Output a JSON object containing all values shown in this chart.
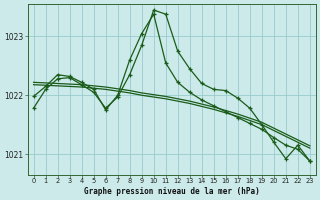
{
  "title": "Graphe pression niveau de la mer (hPa)",
  "background_color": "#cceaea",
  "grid_color": "#99cccc",
  "line_color": "#1a5c1a",
  "xlim": [
    -0.5,
    23.5
  ],
  "ylim": [
    1020.65,
    1023.55
  ],
  "yticks": [
    1021,
    1022,
    1023
  ],
  "xticks": [
    0,
    1,
    2,
    3,
    4,
    5,
    6,
    7,
    8,
    9,
    10,
    11,
    12,
    13,
    14,
    15,
    16,
    17,
    18,
    19,
    20,
    21,
    22,
    23
  ],
  "series1": [
    1021.78,
    1022.1,
    1022.28,
    1022.3,
    1022.18,
    1022.05,
    1021.78,
    1021.97,
    1022.35,
    1022.85,
    1023.45,
    1023.38,
    1022.75,
    1022.45,
    1022.2,
    1022.1,
    1022.08,
    1021.95,
    1021.78,
    1021.5,
    1021.2,
    1020.92,
    1021.15,
    1020.88
  ],
  "series2": [
    1021.98,
    1022.15,
    1022.35,
    1022.32,
    1022.22,
    1022.1,
    1021.75,
    1022.0,
    1022.6,
    1023.05,
    1023.38,
    1022.55,
    1022.22,
    1022.05,
    1021.92,
    1021.82,
    1021.72,
    1021.62,
    1021.52,
    1021.42,
    1021.28,
    1021.15,
    1021.08,
    1020.88
  ],
  "series3": [
    1022.18,
    1022.17,
    1022.16,
    1022.15,
    1022.14,
    1022.12,
    1022.1,
    1022.07,
    1022.04,
    1022.0,
    1021.97,
    1021.94,
    1021.9,
    1021.86,
    1021.81,
    1021.76,
    1021.7,
    1021.64,
    1021.57,
    1021.5,
    1021.4,
    1021.3,
    1021.2,
    1021.1
  ],
  "series4": [
    1022.22,
    1022.21,
    1022.2,
    1022.19,
    1022.18,
    1022.16,
    1022.14,
    1022.11,
    1022.08,
    1022.04,
    1022.01,
    1021.98,
    1021.94,
    1021.9,
    1021.85,
    1021.8,
    1021.74,
    1021.68,
    1021.61,
    1021.54,
    1021.44,
    1021.34,
    1021.24,
    1021.14
  ]
}
